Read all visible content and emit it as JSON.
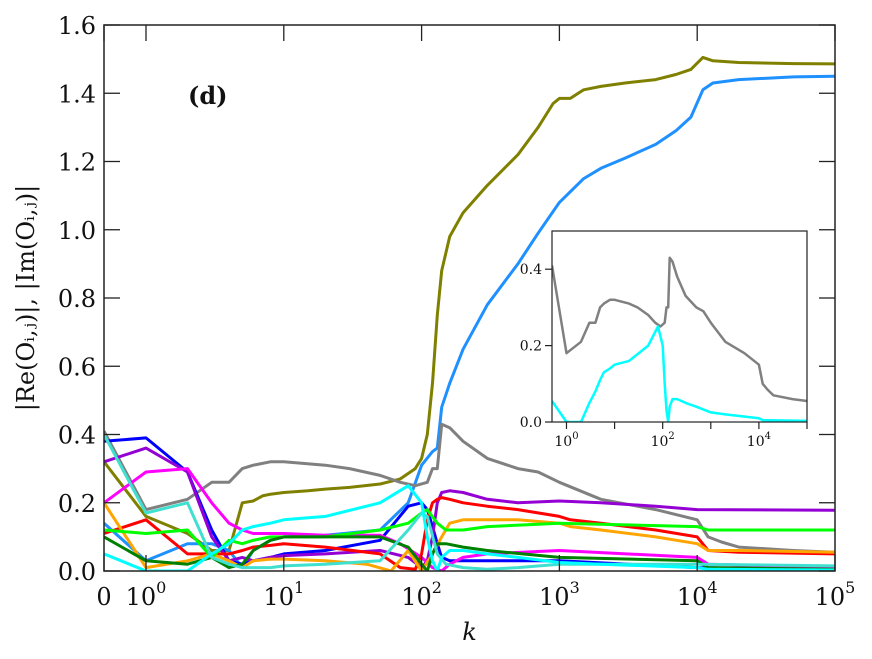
{
  "chart_data": {
    "type": "line",
    "title": "",
    "panel_label": "(d)",
    "xlabel": "k",
    "ylabel": "|Re(O_{i,j})|, |Im(O_{i,j})|",
    "xscale": "symlog",
    "xlim": [
      0,
      100000
    ],
    "ylim": [
      0.0,
      1.6
    ],
    "grid": false,
    "x_ticks": [
      {
        "value": 0,
        "label": "0"
      },
      {
        "value": 1,
        "label": "10",
        "exp": "0"
      },
      {
        "value": 10,
        "label": "10",
        "exp": "1"
      },
      {
        "value": 100,
        "label": "10",
        "exp": "2"
      },
      {
        "value": 1000,
        "label": "10",
        "exp": "3"
      },
      {
        "value": 10000,
        "label": "10",
        "exp": "4"
      },
      {
        "value": 100000,
        "label": "10",
        "exp": "5"
      }
    ],
    "y_ticks": [
      {
        "value": 0.0,
        "label": "0.0"
      },
      {
        "value": 0.2,
        "label": "0.2"
      },
      {
        "value": 0.4,
        "label": "0.4"
      },
      {
        "value": 0.6,
        "label": "0.6"
      },
      {
        "value": 0.8,
        "label": "0.8"
      },
      {
        "value": 1.0,
        "label": "1.0"
      },
      {
        "value": 1.2,
        "label": "1.2"
      },
      {
        "value": 1.4,
        "label": "1.4"
      },
      {
        "value": 1.6,
        "label": "1.6"
      }
    ],
    "series": [
      {
        "name": "olive",
        "color": "#808000",
        "x": [
          0,
          1,
          2,
          3,
          4,
          5,
          6,
          7,
          8,
          10,
          15,
          20,
          30,
          50,
          70,
          90,
          100,
          110,
          120,
          130,
          140,
          160,
          200,
          300,
          500,
          700,
          900,
          1000,
          1200,
          1500,
          2000,
          3000,
          5000,
          7000,
          9000,
          11000,
          13000,
          20000,
          50000,
          100000
        ],
        "y": [
          0.32,
          0.16,
          0.11,
          0.06,
          0.06,
          0.2,
          0.205,
          0.22,
          0.225,
          0.23,
          0.235,
          0.24,
          0.245,
          0.255,
          0.27,
          0.3,
          0.33,
          0.4,
          0.55,
          0.75,
          0.88,
          0.98,
          1.05,
          1.13,
          1.22,
          1.3,
          1.37,
          1.385,
          1.385,
          1.41,
          1.42,
          1.43,
          1.44,
          1.455,
          1.47,
          1.505,
          1.495,
          1.49,
          1.487,
          1.486
        ]
      },
      {
        "name": "dodgerblue",
        "color": "#1e90ff",
        "x": [
          0,
          1,
          2,
          3,
          4,
          5,
          6,
          8,
          10,
          20,
          50,
          80,
          100,
          120,
          130,
          140,
          160,
          200,
          300,
          500,
          700,
          1000,
          1500,
          2000,
          3000,
          5000,
          7000,
          9000,
          11000,
          13000,
          20000,
          50000,
          100000
        ],
        "y": [
          0.14,
          0.03,
          0.08,
          0.08,
          0.06,
          0.01,
          0.06,
          0.09,
          0.1,
          0.105,
          0.12,
          0.2,
          0.31,
          0.35,
          0.36,
          0.48,
          0.55,
          0.65,
          0.78,
          0.9,
          0.99,
          1.08,
          1.15,
          1.18,
          1.21,
          1.25,
          1.29,
          1.33,
          1.41,
          1.43,
          1.44,
          1.448,
          1.45
        ]
      },
      {
        "name": "gray",
        "color": "#808080",
        "x": [
          0,
          1,
          2,
          3,
          4,
          5,
          6,
          8,
          10,
          20,
          30,
          50,
          70,
          90,
          110,
          120,
          130,
          140,
          160,
          200,
          300,
          500,
          700,
          1000,
          2000,
          5000,
          10000,
          12000,
          15000,
          20000,
          50000,
          100000
        ],
        "y": [
          0.41,
          0.18,
          0.21,
          0.26,
          0.26,
          0.3,
          0.31,
          0.32,
          0.32,
          0.31,
          0.3,
          0.28,
          0.26,
          0.25,
          0.26,
          0.3,
          0.3,
          0.43,
          0.42,
          0.38,
          0.33,
          0.3,
          0.29,
          0.26,
          0.21,
          0.18,
          0.15,
          0.1,
          0.085,
          0.07,
          0.06,
          0.055
        ]
      },
      {
        "name": "blue",
        "color": "#0000ff",
        "x": [
          0,
          1,
          2,
          3,
          4,
          5,
          6,
          8,
          10,
          20,
          50,
          80,
          100,
          110,
          120,
          130,
          140,
          160,
          200,
          300,
          1000,
          10000,
          100000
        ],
        "y": [
          0.38,
          0.39,
          0.29,
          0.12,
          0.03,
          0.02,
          0.03,
          0.04,
          0.05,
          0.06,
          0.09,
          0.19,
          0.2,
          0.18,
          0.13,
          0.08,
          0.04,
          0.03,
          0.03,
          0.03,
          0.03,
          0.01,
          0.005
        ]
      },
      {
        "name": "darkviolet",
        "color": "#9400d3",
        "x": [
          0,
          1,
          2,
          3,
          4,
          5,
          6,
          8,
          10,
          20,
          50,
          80,
          100,
          110,
          120,
          130,
          140,
          160,
          200,
          300,
          500,
          1000,
          2000,
          5000,
          10000,
          100000
        ],
        "y": [
          0.32,
          0.36,
          0.29,
          0.1,
          0.03,
          0.04,
          0.03,
          0.04,
          0.045,
          0.05,
          0.06,
          0.04,
          0.01,
          0.03,
          0.1,
          0.2,
          0.23,
          0.235,
          0.23,
          0.21,
          0.2,
          0.205,
          0.2,
          0.19,
          0.18,
          0.178
        ]
      },
      {
        "name": "magenta",
        "color": "#ff00ff",
        "x": [
          0,
          1,
          2,
          3,
          4,
          5,
          6,
          8,
          10,
          20,
          50,
          70,
          100,
          120,
          140,
          160,
          200,
          300,
          1000,
          10000,
          12000,
          100000
        ],
        "y": [
          0.2,
          0.29,
          0.3,
          0.2,
          0.14,
          0.12,
          0.11,
          0.11,
          0.11,
          0.105,
          0.105,
          0.08,
          0.04,
          0.01,
          0.0,
          0.02,
          0.04,
          0.05,
          0.06,
          0.04,
          0.02,
          0.01
        ]
      },
      {
        "name": "red",
        "color": "#ff0000",
        "x": [
          0,
          1,
          2,
          3,
          4,
          5,
          6,
          8,
          10,
          20,
          50,
          70,
          90,
          100,
          110,
          120,
          130,
          140,
          160,
          200,
          300,
          500,
          1000,
          1200,
          2000,
          5000,
          10000,
          12000,
          20000,
          100000
        ],
        "y": [
          0.11,
          0.15,
          0.05,
          0.05,
          0.05,
          0.06,
          0.07,
          0.075,
          0.08,
          0.07,
          0.05,
          0.01,
          0.005,
          0.05,
          0.15,
          0.2,
          0.21,
          0.215,
          0.21,
          0.2,
          0.19,
          0.18,
          0.16,
          0.15,
          0.14,
          0.12,
          0.1,
          0.06,
          0.055,
          0.05
        ]
      },
      {
        "name": "orange",
        "color": "#ffa500",
        "x": [
          0,
          1,
          2,
          3,
          4,
          5,
          6,
          8,
          10,
          20,
          40,
          60,
          80,
          100,
          120,
          140,
          160,
          200,
          300,
          500,
          1000,
          1200,
          2000,
          5000,
          10000,
          12000,
          20000,
          100000
        ],
        "y": [
          0.2,
          0.01,
          0.03,
          0.05,
          0.03,
          0.01,
          0.03,
          0.035,
          0.035,
          0.03,
          0.02,
          0.0,
          0.06,
          0.0,
          0.05,
          0.1,
          0.14,
          0.15,
          0.15,
          0.15,
          0.14,
          0.13,
          0.12,
          0.1,
          0.08,
          0.06,
          0.06,
          0.055
        ]
      },
      {
        "name": "lime",
        "color": "#00ff00",
        "x": [
          0,
          1,
          2,
          3,
          4,
          5,
          6,
          8,
          10,
          20,
          50,
          80,
          100,
          110,
          130,
          150,
          200,
          300,
          1000,
          10000,
          12000,
          20000,
          100000
        ],
        "y": [
          0.12,
          0.11,
          0.12,
          0.04,
          0.09,
          0.08,
          0.09,
          0.1,
          0.1,
          0.1,
          0.12,
          0.14,
          0.17,
          0.18,
          0.14,
          0.12,
          0.12,
          0.13,
          0.14,
          0.13,
          0.12,
          0.12,
          0.12
        ]
      },
      {
        "name": "darkgreen",
        "color": "#008000",
        "x": [
          0,
          1,
          2,
          3,
          4,
          5,
          6,
          8,
          10,
          20,
          50,
          80,
          100,
          110,
          120,
          130,
          150,
          200,
          300,
          1000,
          10000,
          12000,
          100000
        ],
        "y": [
          0.1,
          0.03,
          0.02,
          0.04,
          0.01,
          0.02,
          0.06,
          0.09,
          0.1,
          0.1,
          0.1,
          0.07,
          0.02,
          0.0,
          0.05,
          0.08,
          0.08,
          0.07,
          0.06,
          0.04,
          0.03,
          0.01,
          0.005
        ]
      },
      {
        "name": "turquoise",
        "color": "#40e0d0",
        "x": [
          0,
          1,
          2,
          3,
          4,
          5,
          6,
          8,
          10,
          20,
          50,
          80,
          100,
          110,
          130,
          150,
          200,
          300,
          500,
          1000,
          2000,
          5000,
          10000,
          100000
        ],
        "y": [
          0.4,
          0.17,
          0.2,
          0.04,
          0.02,
          0.01,
          0.01,
          0.01,
          0.015,
          0.02,
          0.03,
          0.12,
          0.17,
          0.16,
          0.05,
          0.02,
          0.01,
          0.005,
          0.01,
          0.02,
          0.02,
          0.02,
          0.02,
          0.015
        ]
      },
      {
        "name": "cyan",
        "color": "#00ffff",
        "x": [
          0,
          1,
          2,
          3,
          4,
          5,
          6,
          8,
          10,
          20,
          50,
          80,
          100,
          110,
          120,
          130,
          140,
          160,
          200,
          300,
          500,
          1000,
          2000,
          10000,
          12000,
          100000
        ],
        "y": [
          0.05,
          0.0,
          0.0,
          0.05,
          0.08,
          0.12,
          0.13,
          0.14,
          0.15,
          0.16,
          0.2,
          0.25,
          0.2,
          0.1,
          0.03,
          0.0,
          0.04,
          0.06,
          0.06,
          0.05,
          0.04,
          0.025,
          0.02,
          0.01,
          0.005,
          0.003
        ]
      }
    ],
    "inset": {
      "xscale": "log",
      "xlim": [
        0.5,
        100000
      ],
      "ylim": [
        0.0,
        0.5
      ],
      "x_ticks": [
        {
          "value": 1,
          "label": "10",
          "exp": "0"
        },
        {
          "value": 100,
          "label": "10",
          "exp": "2"
        },
        {
          "value": 10000,
          "label": "10",
          "exp": "4"
        }
      ],
      "x_minor_ticks": [
        10,
        1000,
        100000
      ],
      "y_ticks": [
        {
          "value": 0.0,
          "label": "0.0"
        },
        {
          "value": 0.2,
          "label": "0.2"
        },
        {
          "value": 0.4,
          "label": "0.4"
        }
      ],
      "series": [
        {
          "name": "gray",
          "color": "#808080",
          "x": [
            0.5,
            1,
            2,
            3,
            4,
            5,
            6,
            8,
            10,
            20,
            30,
            50,
            70,
            90,
            110,
            120,
            130,
            140,
            160,
            200,
            300,
            500,
            700,
            1000,
            2000,
            5000,
            10000,
            12000,
            15000,
            20000,
            50000,
            100000
          ],
          "y": [
            0.41,
            0.18,
            0.21,
            0.26,
            0.26,
            0.3,
            0.31,
            0.32,
            0.32,
            0.31,
            0.3,
            0.28,
            0.26,
            0.25,
            0.26,
            0.3,
            0.3,
            0.43,
            0.42,
            0.38,
            0.33,
            0.3,
            0.29,
            0.26,
            0.21,
            0.18,
            0.15,
            0.1,
            0.085,
            0.07,
            0.06,
            0.055
          ]
        },
        {
          "name": "cyan",
          "color": "#00ffff",
          "x": [
            0.5,
            1,
            2,
            3,
            4,
            5,
            6,
            8,
            10,
            20,
            50,
            80,
            100,
            110,
            120,
            130,
            140,
            160,
            200,
            300,
            500,
            1000,
            2000,
            10000,
            12000,
            100000
          ],
          "y": [
            0.055,
            0.0,
            0.0,
            0.05,
            0.08,
            0.11,
            0.13,
            0.14,
            0.15,
            0.16,
            0.2,
            0.25,
            0.2,
            0.1,
            0.03,
            0.0,
            0.04,
            0.06,
            0.06,
            0.05,
            0.04,
            0.025,
            0.02,
            0.01,
            0.005,
            0.003
          ]
        }
      ]
    }
  }
}
